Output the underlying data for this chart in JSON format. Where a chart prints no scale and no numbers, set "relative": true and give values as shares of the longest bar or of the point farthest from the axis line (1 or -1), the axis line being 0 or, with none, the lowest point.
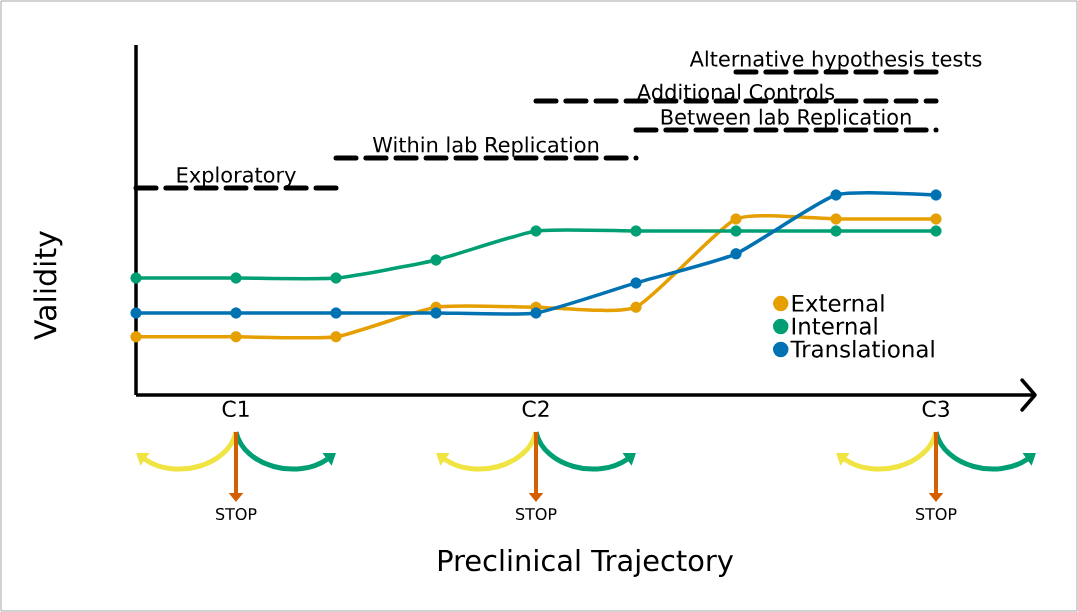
{
  "chart_data": {
    "type": "line",
    "relative": true,
    "xlabel": "Preclinical Trajectory",
    "ylabel": "Validity",
    "categories": [
      null,
      "C1",
      null,
      null,
      "C2",
      null,
      null,
      null,
      "C3"
    ],
    "series": [
      {
        "name": "External",
        "color": "#e69f00",
        "values": [
          0.18,
          0.18,
          0.18,
          0.272,
          0.272,
          0.272,
          0.545,
          0.545,
          0.545
        ]
      },
      {
        "name": "Internal",
        "color": "#009e73",
        "values": [
          0.362,
          0.362,
          0.362,
          0.418,
          0.508,
          0.508,
          0.508,
          0.508,
          0.508
        ]
      },
      {
        "name": "Translational",
        "color": "#0072b2",
        "values": [
          0.254,
          0.254,
          0.254,
          0.254,
          0.254,
          0.347,
          0.437,
          0.619,
          0.619
        ]
      },
      {
        "name": "Exploratory",
        "color": "#000000",
        "line_style": "dashed",
        "marker": "none",
        "values": [
          0.641,
          0.641,
          0.641,
          null,
          null,
          null,
          null,
          null,
          null
        ]
      },
      {
        "name": "Within lab Replication",
        "color": "#000000",
        "line_style": "dashed",
        "marker": "none",
        "values": [
          null,
          null,
          0.734,
          0.734,
          0.734,
          0.734,
          null,
          null,
          null
        ]
      },
      {
        "name": "Additional Controls",
        "color": "#000000",
        "line_style": "dashed",
        "marker": "none",
        "values": [
          null,
          null,
          null,
          null,
          0.91,
          0.91,
          0.91,
          0.91,
          0.91
        ]
      },
      {
        "name": "Between lab Replication",
        "color": "#000000",
        "line_style": "dashed",
        "marker": "none",
        "values": [
          null,
          null,
          null,
          null,
          null,
          0.82,
          0.82,
          0.82,
          0.82
        ]
      },
      {
        "name": "Alternative hypothesis tests",
        "color": "#000000",
        "line_style": "dashed",
        "marker": "none",
        "values": [
          null,
          null,
          null,
          null,
          null,
          null,
          1.0,
          1.0,
          1.0
        ]
      }
    ],
    "annotations": [
      "STOP",
      "STOP",
      "STOP"
    ],
    "marker": "circle",
    "legend": "bottom right",
    "tick_labels": "x"
  }
}
